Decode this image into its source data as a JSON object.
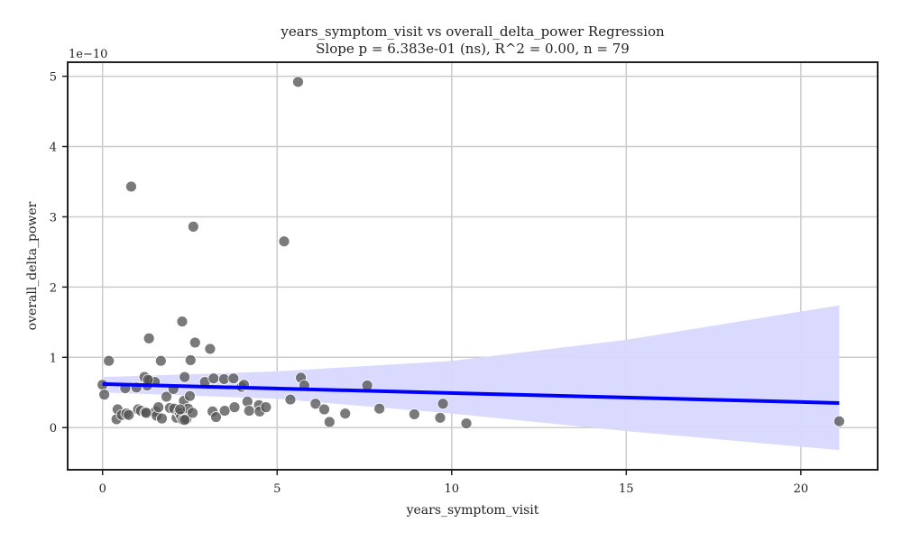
{
  "chart_data": {
    "type": "scatter",
    "title_line1": "years_symptom_visit vs overall_delta_power Regression",
    "title_line2": "Slope p = 6.383e-01 (ns), R^2 = 0.00, n = 79",
    "xlabel": "years_symptom_visit",
    "ylabel": "overall_delta_power",
    "y_offset_label": "1e−10",
    "xlim": [
      -1.0,
      22.2
    ],
    "ylim": [
      -0.6,
      5.2
    ],
    "x_ticks": [
      0,
      5,
      10,
      15,
      20
    ],
    "x_tick_labels": [
      "0",
      "5",
      "10",
      "15",
      "20"
    ],
    "y_ticks": [
      0,
      1,
      2,
      3,
      4,
      5
    ],
    "y_tick_labels": [
      "0",
      "1",
      "2",
      "3",
      "4",
      "5"
    ],
    "grid": true,
    "colors": {
      "points": "#555555",
      "point_edge": "#ffffff",
      "regression_line": "#0000ff",
      "confidence_band": "#d8d8ff"
    },
    "regression": {
      "x": [
        0.0,
        21.1
      ],
      "y": [
        0.62,
        0.35
      ],
      "ci_x": [
        0.0,
        5.0,
        10.0,
        15.0,
        21.1
      ],
      "ci_upper": [
        0.72,
        0.8,
        0.95,
        1.25,
        1.74
      ],
      "ci_lower": [
        0.5,
        0.41,
        0.2,
        -0.05,
        -0.32
      ]
    },
    "points": [
      {
        "x": 0.0,
        "y": 0.61
      },
      {
        "x": 0.05,
        "y": 0.47
      },
      {
        "x": 0.18,
        "y": 0.95
      },
      {
        "x": 0.4,
        "y": 0.12
      },
      {
        "x": 0.43,
        "y": 0.26
      },
      {
        "x": 0.55,
        "y": 0.18
      },
      {
        "x": 0.65,
        "y": 0.56
      },
      {
        "x": 0.68,
        "y": 0.2
      },
      {
        "x": 0.75,
        "y": 0.18
      },
      {
        "x": 0.82,
        "y": 3.43
      },
      {
        "x": 0.97,
        "y": 0.57
      },
      {
        "x": 1.02,
        "y": 0.26
      },
      {
        "x": 1.1,
        "y": 0.24
      },
      {
        "x": 1.2,
        "y": 0.72
      },
      {
        "x": 1.22,
        "y": 0.22
      },
      {
        "x": 1.28,
        "y": 0.6
      },
      {
        "x": 1.33,
        "y": 1.27
      },
      {
        "x": 1.35,
        "y": 0.67
      },
      {
        "x": 1.5,
        "y": 0.65
      },
      {
        "x": 1.52,
        "y": 0.23
      },
      {
        "x": 1.55,
        "y": 0.17
      },
      {
        "x": 1.6,
        "y": 0.29
      },
      {
        "x": 1.67,
        "y": 0.95
      },
      {
        "x": 1.7,
        "y": 0.13
      },
      {
        "x": 1.83,
        "y": 0.44
      },
      {
        "x": 1.93,
        "y": 0.28
      },
      {
        "x": 2.03,
        "y": 0.55
      },
      {
        "x": 2.05,
        "y": 0.27
      },
      {
        "x": 2.12,
        "y": 0.14
      },
      {
        "x": 2.18,
        "y": 0.22
      },
      {
        "x": 2.22,
        "y": 0.2
      },
      {
        "x": 2.25,
        "y": 0.16
      },
      {
        "x": 2.28,
        "y": 1.51
      },
      {
        "x": 2.3,
        "y": 0.11
      },
      {
        "x": 2.33,
        "y": 0.38
      },
      {
        "x": 2.35,
        "y": 0.72
      },
      {
        "x": 2.4,
        "y": 0.12
      },
      {
        "x": 2.45,
        "y": 0.27
      },
      {
        "x": 2.5,
        "y": 0.45
      },
      {
        "x": 2.52,
        "y": 0.96
      },
      {
        "x": 2.58,
        "y": 0.21
      },
      {
        "x": 2.6,
        "y": 2.86
      },
      {
        "x": 2.65,
        "y": 1.21
      },
      {
        "x": 2.93,
        "y": 0.65
      },
      {
        "x": 3.08,
        "y": 1.12
      },
      {
        "x": 3.15,
        "y": 0.23
      },
      {
        "x": 3.18,
        "y": 0.7
      },
      {
        "x": 3.25,
        "y": 0.15
      },
      {
        "x": 3.48,
        "y": 0.69
      },
      {
        "x": 3.5,
        "y": 0.24
      },
      {
        "x": 3.75,
        "y": 0.7
      },
      {
        "x": 3.78,
        "y": 0.29
      },
      {
        "x": 3.98,
        "y": 0.58
      },
      {
        "x": 4.05,
        "y": 0.61
      },
      {
        "x": 4.15,
        "y": 0.37
      },
      {
        "x": 4.2,
        "y": 0.24
      },
      {
        "x": 4.48,
        "y": 0.32
      },
      {
        "x": 4.5,
        "y": 0.23
      },
      {
        "x": 4.68,
        "y": 0.29
      },
      {
        "x": 5.2,
        "y": 2.65
      },
      {
        "x": 5.38,
        "y": 0.4
      },
      {
        "x": 5.6,
        "y": 4.92
      },
      {
        "x": 5.68,
        "y": 0.71
      },
      {
        "x": 5.78,
        "y": 0.6
      },
      {
        "x": 6.1,
        "y": 0.34
      },
      {
        "x": 6.35,
        "y": 0.26
      },
      {
        "x": 6.5,
        "y": 0.08
      },
      {
        "x": 6.95,
        "y": 0.2
      },
      {
        "x": 7.58,
        "y": 0.6
      },
      {
        "x": 7.93,
        "y": 0.27
      },
      {
        "x": 8.93,
        "y": 0.19
      },
      {
        "x": 9.67,
        "y": 0.14
      },
      {
        "x": 9.75,
        "y": 0.34
      },
      {
        "x": 10.42,
        "y": 0.06
      },
      {
        "x": 21.1,
        "y": 0.09
      },
      {
        "x": 1.3,
        "y": 0.68
      },
      {
        "x": 2.22,
        "y": 0.26
      },
      {
        "x": 2.35,
        "y": 0.11
      },
      {
        "x": 1.25,
        "y": 0.21
      }
    ]
  }
}
